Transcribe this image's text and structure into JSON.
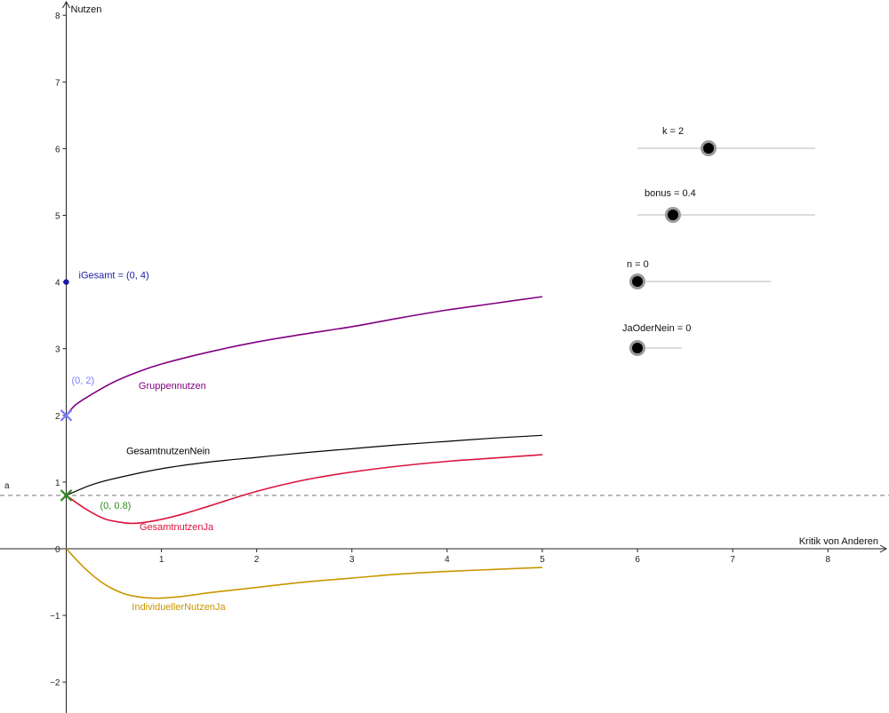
{
  "chart_data": {
    "type": "line",
    "x_axis_label": "Kritik von Anderen",
    "y_axis_label": "Nutzen",
    "xlim": [
      0,
      8.6
    ],
    "ylim": [
      -2.4,
      8.2
    ],
    "x_ticks": [
      "1",
      "2",
      "3",
      "4",
      "5",
      "6",
      "7",
      "8"
    ],
    "y_ticks": [
      "-2",
      "-1",
      "0",
      "1",
      "2",
      "3",
      "4",
      "5",
      "6",
      "7",
      "8"
    ],
    "grid": false,
    "series": [
      {
        "name": "Gruppennutzen",
        "color": "#800080",
        "x": [
          0,
          0.1,
          0.25,
          0.5,
          0.75,
          1,
          1.5,
          2,
          2.5,
          3,
          3.5,
          4,
          4.5,
          5
        ],
        "y": [
          2.0,
          2.16,
          2.3,
          2.5,
          2.65,
          2.77,
          2.95,
          3.1,
          3.22,
          3.33,
          3.46,
          3.58,
          3.68,
          3.78
        ]
      },
      {
        "name": "GesamtnutzenNein",
        "color": "#000000",
        "x": [
          0,
          0.25,
          0.5,
          1,
          1.5,
          2,
          2.5,
          3,
          3.5,
          4,
          4.5,
          5
        ],
        "y": [
          0.8,
          0.95,
          1.05,
          1.2,
          1.3,
          1.37,
          1.44,
          1.5,
          1.56,
          1.61,
          1.66,
          1.7
        ]
      },
      {
        "name": "GesamtnutzenJa",
        "color": "#dc143c",
        "x": [
          0,
          0.2,
          0.4,
          0.6,
          0.7,
          0.8,
          1.0,
          1.25,
          1.5,
          2,
          2.5,
          3,
          3.5,
          4,
          4.5,
          5
        ],
        "y": [
          0.8,
          0.6,
          0.45,
          0.39,
          0.38,
          0.39,
          0.44,
          0.53,
          0.64,
          0.86,
          1.03,
          1.15,
          1.24,
          1.31,
          1.36,
          1.41
        ]
      },
      {
        "name": "IndividuellerNutzenJa",
        "color": "#c89600",
        "x": [
          0,
          0.2,
          0.4,
          0.6,
          0.8,
          1.0,
          1.25,
          1.5,
          2,
          2.5,
          3,
          3.5,
          4,
          4.5,
          5
        ],
        "y": [
          0,
          -0.3,
          -0.53,
          -0.67,
          -0.73,
          -0.74,
          -0.71,
          -0.66,
          -0.58,
          -0.5,
          -0.44,
          -0.38,
          -0.34,
          -0.31,
          -0.28
        ]
      }
    ],
    "horizontal_line": {
      "name": "a",
      "y": 0.8,
      "style": "dashed",
      "color": "#999999"
    },
    "points": [
      {
        "label": "iGesamt = (0, 4)",
        "x": 0,
        "y": 4,
        "marker": "dot",
        "color": "#1a1aa6"
      },
      {
        "label": "(0, 2)",
        "x": 0,
        "y": 2,
        "marker": "cross",
        "color": "#7b7bff"
      },
      {
        "label": "(0, 0.8)",
        "x": 0,
        "y": 0.8,
        "marker": "cross",
        "color": "#2e8b1e"
      }
    ],
    "sliders": [
      {
        "label": "k = 2",
        "value": 2,
        "min": 0,
        "max": 5
      },
      {
        "label": "bonus = 0.4",
        "value": 0.4,
        "min": 0,
        "max": 2
      },
      {
        "label": "n = 0",
        "value": 0,
        "min": 0,
        "max": 1
      },
      {
        "label": "JaOderNein = 0",
        "value": 0,
        "min": 0,
        "max": 1
      }
    ]
  }
}
